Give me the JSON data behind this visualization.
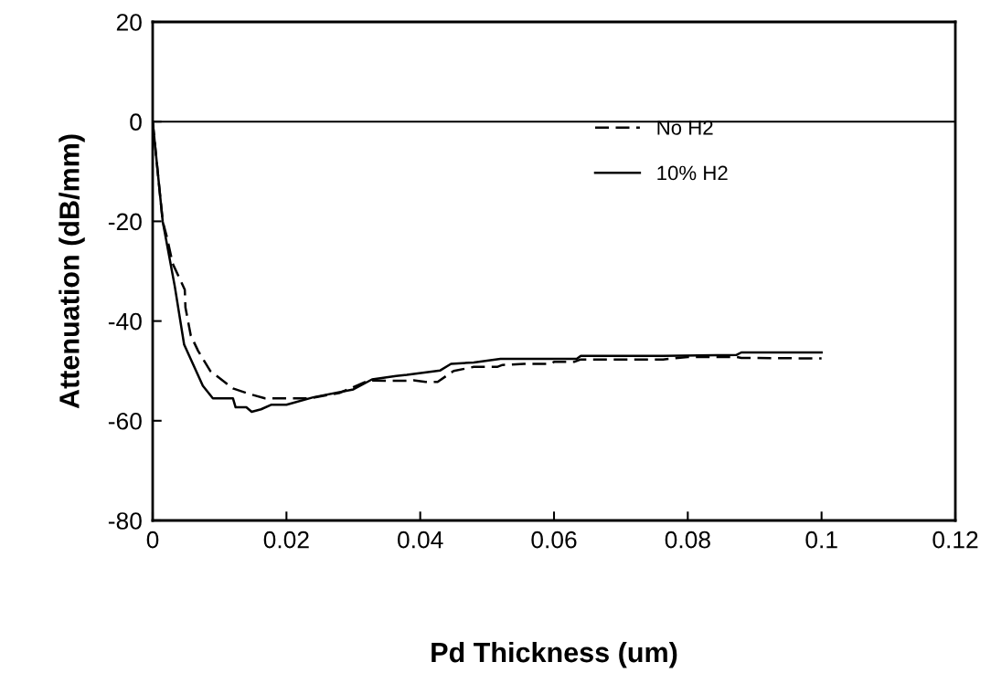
{
  "chart_data": {
    "type": "line",
    "xlabel": "Pd Thickness (um)",
    "ylabel": "Attenuation (dB/mm)",
    "xlim": [
      0,
      0.12
    ],
    "xticks": [
      0,
      0.02,
      0.04,
      0.06,
      0.08,
      {
        "value": 0.1,
        "label": "0.1"
      },
      0.12
    ],
    "ylim": [
      -80,
      20
    ],
    "yticks": [
      -80,
      -60,
      -40,
      -20,
      0,
      20
    ],
    "grid": false,
    "legend": "top right",
    "marker": "none",
    "ref_lines": [
      {
        "axis": "y",
        "value": 0,
        "color": "#000000",
        "line_style": "solid"
      }
    ],
    "series": [
      {
        "name": "No H2",
        "color": "#000000",
        "line_style": "dashed",
        "x": [
          0,
          0.0015,
          0.0021,
          0.003,
          0.0048,
          0.0049,
          0.0057,
          0.0068,
          0.0086,
          0.012,
          0.0144,
          0.0168,
          0.0234,
          0.028,
          0.0323,
          0.035,
          0.0372,
          0.039,
          0.0408,
          0.0426,
          0.045,
          0.048,
          0.0515,
          0.0523,
          0.0555,
          0.0595,
          0.06,
          0.063,
          0.064,
          0.0763,
          0.08,
          0.0873,
          0.088,
          0.1
        ],
        "values": [
          0,
          -20,
          -23,
          -28.5,
          -33.7,
          -37.3,
          -42.9,
          -46,
          -50,
          -53.5,
          -54.6,
          -55.5,
          -55.5,
          -54.4,
          -51.9,
          -52,
          -52,
          -51.9,
          -52.2,
          -52.2,
          -50,
          -49.2,
          -49.2,
          -48.8,
          -48.6,
          -48.6,
          -48.2,
          -48.2,
          -47.7,
          -47.7,
          -47.2,
          -47.2,
          -47.4,
          -47.5
        ]
      },
      {
        "name": "10% H2",
        "color": "#000000",
        "line_style": "solid",
        "x": [
          0,
          0.0015,
          0.0033,
          0.0047,
          0.0075,
          0.009,
          0.012,
          0.0124,
          0.014,
          0.0148,
          0.0162,
          0.0177,
          0.02,
          0.024,
          0.03,
          0.0328,
          0.0364,
          0.038,
          0.043,
          0.0446,
          0.048,
          0.052,
          0.0634,
          0.064,
          0.0763,
          0.0873,
          0.088,
          0.1
        ],
        "values": [
          0,
          -20,
          -33,
          -44.7,
          -53,
          -55.5,
          -55.5,
          -57.3,
          -57.3,
          -58.2,
          -57.7,
          -56.8,
          -56.8,
          -55.3,
          -53.7,
          -51.7,
          -51,
          -50.8,
          -49.9,
          -48.6,
          -48.3,
          -47.6,
          -47.6,
          -47,
          -47,
          -46.8,
          -46.3,
          -46.3
        ]
      }
    ]
  }
}
